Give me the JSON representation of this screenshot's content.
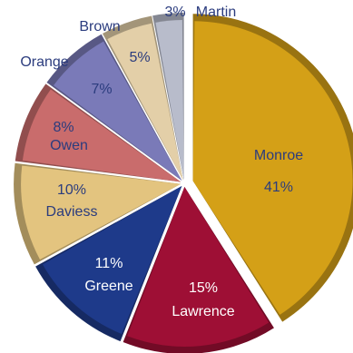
{
  "chart_data": {
    "type": "pie",
    "title": "",
    "categories": [
      "Monroe",
      "Lawrence",
      "Greene",
      "Daviess",
      "Owen",
      "Orange",
      "Brown",
      "Martin"
    ],
    "values": [
      41,
      15,
      11,
      10,
      8,
      7,
      5,
      3
    ],
    "percent_labels": [
      "41%",
      "15%",
      "11%",
      "10%",
      "8%",
      "7%",
      "5%",
      "3%"
    ],
    "colors": [
      "#D4A017",
      "#9E0F35",
      "#1E3A8A",
      "#E3C47F",
      "#C96C6C",
      "#7A7AB8",
      "#E3CFA8",
      "#B8BCCB"
    ],
    "label_colors": {
      "inside_light": "#FFFFFF",
      "inside_dark": "#2B3C7E",
      "outside": "#2B3C7E"
    },
    "legend": "none"
  }
}
